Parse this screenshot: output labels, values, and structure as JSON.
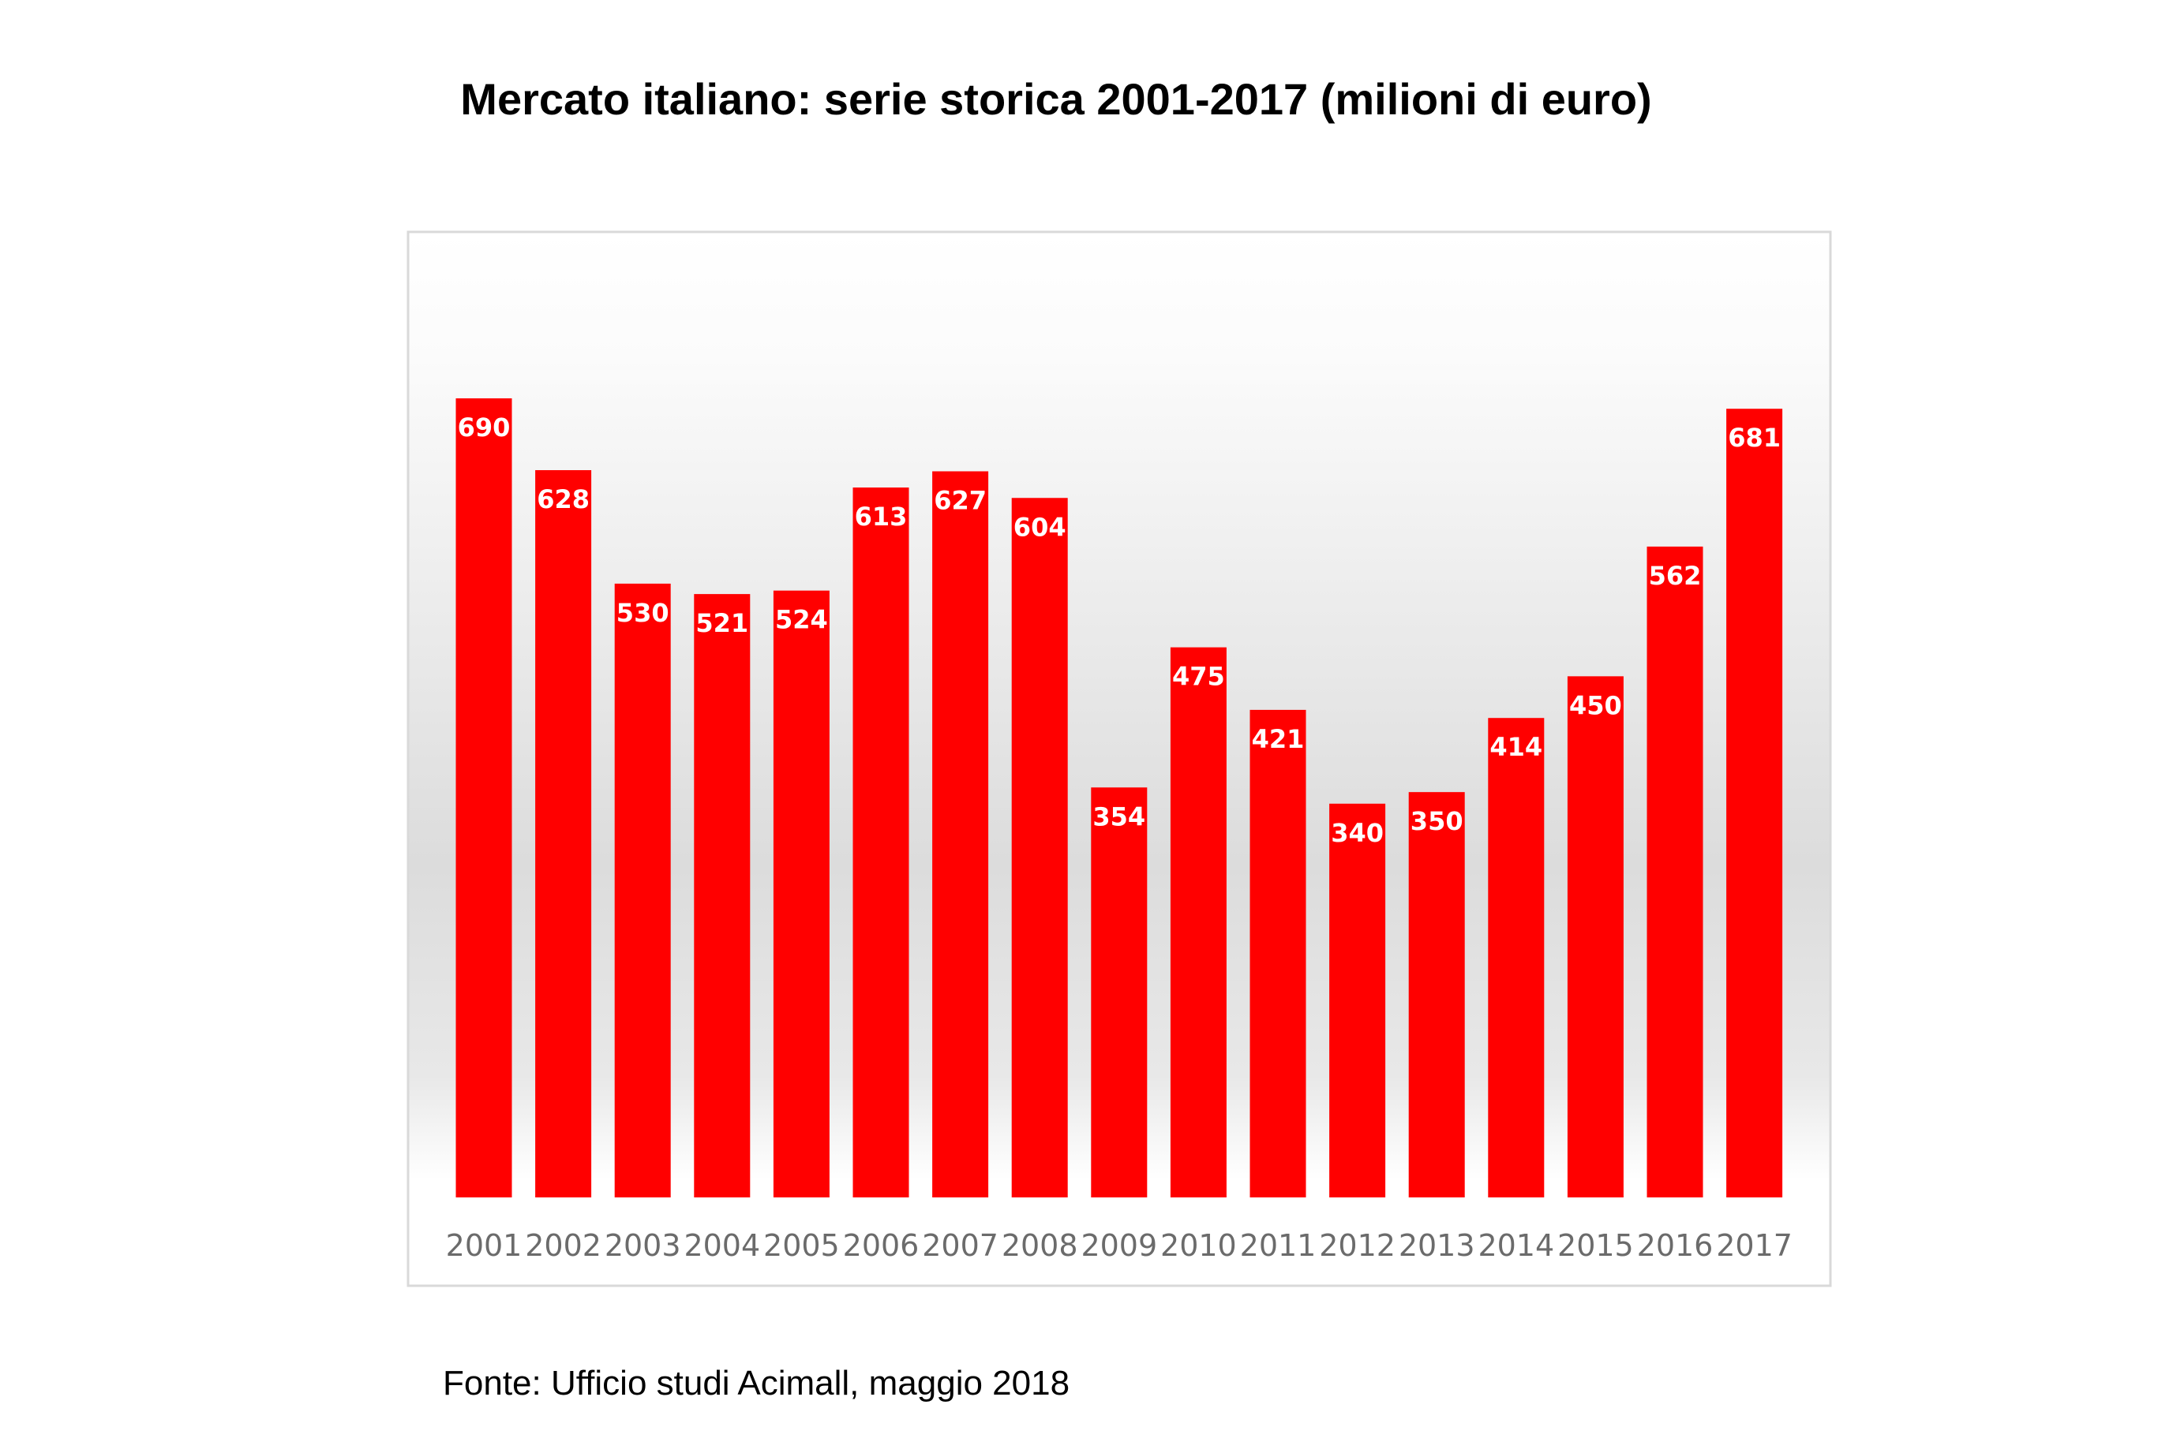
{
  "chart_data": {
    "type": "bar",
    "title": "Mercato italiano: serie storica 2001-2017 (milioni di euro)",
    "xlabel": "",
    "ylabel": "",
    "ylim": [
      0,
      700
    ],
    "grid": false,
    "categories": [
      "2001",
      "2002",
      "2003",
      "2004",
      "2005",
      "2006",
      "2007",
      "2008",
      "2009",
      "2010",
      "2011",
      "2012",
      "2013",
      "2014",
      "2015",
      "2016",
      "2017"
    ],
    "values": [
      690,
      628,
      530,
      521,
      524,
      613,
      627,
      604,
      354,
      475,
      421,
      340,
      350,
      414,
      450,
      562,
      681
    ],
    "bar_color": "#ff0000",
    "source": "Fonte: Ufficio studi Acimall, maggio 2018"
  }
}
